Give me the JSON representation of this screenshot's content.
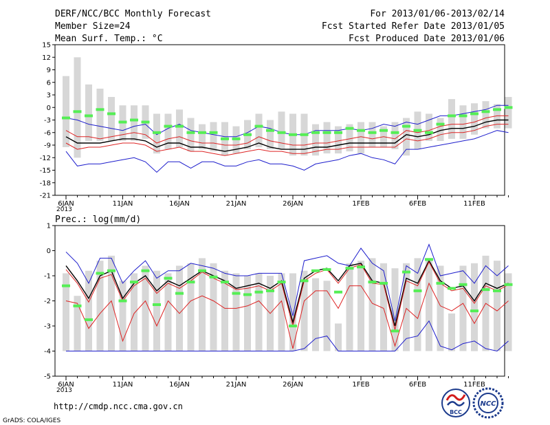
{
  "header": {
    "left": [
      "DERF/NCC/BCC Monthly Forecast",
      "Member Size=24",
      "Mean Surf. Temp.: °C"
    ],
    "right": [
      "For 2013/01/06-2013/02/14",
      "Fcst Started Refer Date 2013/01/05",
      "Fcst Produced Date 2013/01/06"
    ]
  },
  "footer": {
    "url": "http://cmdp.ncc.cma.gov.cn",
    "credit": "GrADS: COLA/IGES"
  },
  "logos": {
    "bcc_label": "BCC",
    "ncc_label": "NCC"
  },
  "colors": {
    "bar": "#d7d7d7",
    "mean": "#000000",
    "red": "#dd2222",
    "blue": "#1c1ccc",
    "green": "#55ee55"
  },
  "chart_data": [
    {
      "type": "line",
      "title": "Mean Surf. Temp.: °C",
      "ylim": [
        -21,
        15
      ],
      "yticks": [
        "15",
        "12",
        "9",
        "6",
        "3",
        "0",
        "-3",
        "-6",
        "-9",
        "-12",
        "-15",
        "-18",
        "-21"
      ],
      "xlabels": [
        "6JAN",
        "11JAN",
        "16JAN",
        "21JAN",
        "26JAN",
        "1FEB",
        "6FEB",
        "11FEB"
      ],
      "year_label": "2013",
      "days": 40,
      "bars_top": [
        7.5,
        12,
        5.5,
        4.5,
        2.5,
        0.5,
        0.5,
        0.5,
        -1.5,
        -1.5,
        -0.5,
        -2.5,
        -4.0,
        -3.5,
        -3.5,
        -4.5,
        -3.0,
        -1.5,
        -3.0,
        -1.0,
        -1.5,
        -1.5,
        -4.0,
        -3.5,
        -4.5,
        -4.0,
        -3.5,
        -3.5,
        -4.5,
        -3.5,
        -2.5,
        -1.0,
        -1.5,
        -2.5,
        2.0,
        0.5,
        1.0,
        1.5,
        0.8,
        2.5
      ],
      "bars_bottom": [
        -9.5,
        -12,
        -8,
        -8,
        -8,
        -8,
        -8,
        -7.5,
        -11,
        -10,
        -9.5,
        -10.5,
        -10,
        -10.5,
        -11.5,
        -11,
        -10,
        -9.5,
        -10,
        -10,
        -11.5,
        -11.5,
        -11.5,
        -11,
        -11,
        -10.5,
        -11,
        -9.5,
        -9.5,
        -10,
        -11.5,
        -10,
        -8,
        -8,
        -7.5,
        -7.5,
        -6.5,
        -5,
        -5,
        -5
      ],
      "green": [
        -2.5,
        -1.0,
        -2.0,
        -0.5,
        -1.5,
        -3.5,
        -3.0,
        -3.5,
        -6.0,
        -4.5,
        -4.5,
        -6.0,
        -6.0,
        -6.0,
        -7.5,
        -7.5,
        -6.5,
        -4.5,
        -5.5,
        -6.0,
        -6.5,
        -6.5,
        -6.0,
        -6.0,
        -6.0,
        -5.0,
        -5.5,
        -6.0,
        -5.5,
        -6.0,
        -4.5,
        -5.5,
        -6.0,
        -4.0,
        -2.0,
        -2.0,
        -1.5,
        -1.0,
        -0.5,
        0.0
      ],
      "series": [
        {
          "name": "blue-upper",
          "color": "#1c1ccc",
          "values": [
            -2.5,
            -3.0,
            -4.0,
            -4.5,
            -5.0,
            -5.5,
            -4.5,
            -4.0,
            -6.5,
            -5.0,
            -4.0,
            -5.5,
            -6.0,
            -6.5,
            -7.0,
            -7.0,
            -6.0,
            -4.5,
            -5.0,
            -6.0,
            -6.5,
            -6.5,
            -5.5,
            -5.5,
            -5.5,
            -5.0,
            -5.5,
            -5.0,
            -4.0,
            -4.5,
            -3.5,
            -4.0,
            -3.0,
            -2.0,
            -2.0,
            -1.5,
            -1.0,
            -0.5,
            0.5,
            0.5
          ]
        },
        {
          "name": "red-upper",
          "color": "#dd2222",
          "values": [
            -5.5,
            -7.0,
            -7.0,
            -7.5,
            -7.0,
            -6.5,
            -6.0,
            -6.5,
            -8.5,
            -7.5,
            -7.0,
            -8.0,
            -8.5,
            -8.5,
            -9.0,
            -9.0,
            -8.5,
            -7.0,
            -8.0,
            -8.5,
            -9.0,
            -9.0,
            -8.5,
            -8.5,
            -8.0,
            -7.5,
            -7.0,
            -7.5,
            -7.0,
            -7.5,
            -5.5,
            -6.0,
            -5.5,
            -4.5,
            -4.0,
            -4.0,
            -3.5,
            -2.5,
            -2.0,
            -2.0
          ]
        },
        {
          "name": "mean",
          "color": "#000000",
          "values": [
            -7.0,
            -8.5,
            -8.5,
            -8.5,
            -8.0,
            -7.5,
            -7.5,
            -8.0,
            -9.5,
            -8.5,
            -8.5,
            -9.5,
            -9.5,
            -10.0,
            -10.5,
            -10.0,
            -9.5,
            -8.5,
            -9.5,
            -10.0,
            -10.0,
            -10.0,
            -9.5,
            -9.5,
            -9.0,
            -8.5,
            -8.5,
            -8.5,
            -8.5,
            -8.5,
            -6.5,
            -7.0,
            -6.5,
            -5.5,
            -5.0,
            -5.0,
            -4.5,
            -3.5,
            -3.0,
            -3.0
          ]
        },
        {
          "name": "red-lower",
          "color": "#dd2222",
          "values": [
            -8.5,
            -10.0,
            -9.5,
            -9.5,
            -9.0,
            -8.5,
            -8.5,
            -9.0,
            -10.5,
            -10.0,
            -9.5,
            -10.5,
            -10.5,
            -11.0,
            -11.5,
            -11.0,
            -10.5,
            -10.0,
            -10.5,
            -10.5,
            -11.0,
            -11.0,
            -10.5,
            -10.0,
            -10.0,
            -9.5,
            -9.5,
            -9.5,
            -9.5,
            -9.5,
            -7.5,
            -8.0,
            -7.5,
            -6.5,
            -6.0,
            -6.0,
            -5.5,
            -4.5,
            -4.0,
            -4.0
          ]
        },
        {
          "name": "blue-lower",
          "color": "#1c1ccc",
          "values": [
            -10.5,
            -14.0,
            -13.5,
            -13.5,
            -13.0,
            -12.5,
            -12.0,
            -13.0,
            -15.5,
            -13.0,
            -13.0,
            -14.5,
            -13.0,
            -13.0,
            -14.0,
            -14.0,
            -13.0,
            -12.5,
            -13.5,
            -13.5,
            -14.0,
            -15.0,
            -13.5,
            -13.0,
            -12.5,
            -11.5,
            -11.0,
            -12.0,
            -12.5,
            -13.5,
            -10.0,
            -10.0,
            -9.5,
            -9.0,
            -8.5,
            -8.0,
            -7.5,
            -6.5,
            -5.5,
            -6.0
          ]
        }
      ]
    },
    {
      "type": "line",
      "title": "Prec.: log(mm/d)",
      "ylim": [
        -5,
        1
      ],
      "yticks": [
        "1",
        "0",
        "-1",
        "-2",
        "-3",
        "-4",
        "-5"
      ],
      "xlabels": [
        "6JAN",
        "11JAN",
        "16JAN",
        "21JAN",
        "26JAN",
        "1FEB",
        "6FEB",
        "11FEB"
      ],
      "year_label": "2013",
      "days": 40,
      "bars_top": [
        -0.9,
        -1.8,
        -0.8,
        -0.4,
        -0.2,
        -1.2,
        -0.9,
        -0.6,
        -0.8,
        -0.9,
        -0.6,
        -0.5,
        -0.3,
        -0.5,
        -0.8,
        -0.9,
        -1.0,
        -0.9,
        -1.0,
        -0.9,
        -0.9,
        -0.8,
        -1.1,
        -1.2,
        -2.9,
        -0.5,
        -0.4,
        -0.3,
        -0.5,
        -0.7,
        -0.5,
        -0.3,
        -0.3,
        -0.6,
        -2.5,
        -0.6,
        -0.5,
        -0.2,
        -0.4,
        -0.9
      ],
      "bars_bottom": -4.0,
      "green": [
        -1.4,
        -2.2,
        -2.75,
        -0.9,
        -0.8,
        -2.0,
        -1.25,
        -0.8,
        -2.15,
        -1.1,
        -1.7,
        -1.25,
        -0.8,
        -1.05,
        -1.25,
        -1.7,
        -1.75,
        -1.65,
        -1.6,
        -1.25,
        -3.0,
        -1.2,
        -0.8,
        -0.75,
        -1.65,
        -0.7,
        -0.65,
        -1.25,
        -1.3,
        -3.2,
        -0.85,
        -1.6,
        -0.35,
        -1.3,
        -1.5,
        -1.35,
        -2.4,
        -1.55,
        -1.6,
        -1.35
      ],
      "series": [
        {
          "name": "blue-upper",
          "color": "#1c1ccc",
          "values": [
            -0.05,
            -0.5,
            -1.3,
            -0.3,
            -0.3,
            -1.3,
            -0.8,
            -0.4,
            -1.1,
            -0.8,
            -0.8,
            -0.5,
            -0.6,
            -0.7,
            -0.9,
            -1.0,
            -1.0,
            -0.9,
            -0.9,
            -0.9,
            -2.6,
            -0.4,
            -0.3,
            -0.2,
            -0.5,
            -0.6,
            0.1,
            -0.5,
            -0.8,
            -2.8,
            -0.6,
            -0.9,
            0.25,
            -1.0,
            -0.9,
            -0.8,
            -1.3,
            -0.6,
            -1.0,
            -0.6
          ]
        },
        {
          "name": "mean",
          "color": "#000000",
          "values": [
            -0.6,
            -1.2,
            -1.9,
            -1.0,
            -0.8,
            -1.9,
            -1.3,
            -1.0,
            -1.6,
            -1.2,
            -1.4,
            -1.1,
            -0.8,
            -1.0,
            -1.2,
            -1.5,
            -1.4,
            -1.3,
            -1.5,
            -1.2,
            -2.85,
            -1.1,
            -0.8,
            -0.7,
            -1.2,
            -0.6,
            -0.5,
            -1.2,
            -1.3,
            -3.0,
            -1.1,
            -1.3,
            -0.4,
            -1.2,
            -1.5,
            -1.4,
            -2.0,
            -1.3,
            -1.5,
            -1.3
          ]
        },
        {
          "name": "red-upper",
          "color": "#dd2222",
          "values": [
            -0.75,
            -1.3,
            -2.05,
            -1.1,
            -0.95,
            -2.0,
            -1.4,
            -1.1,
            -1.7,
            -1.3,
            -1.5,
            -1.2,
            -0.85,
            -1.1,
            -1.3,
            -1.55,
            -1.5,
            -1.4,
            -1.6,
            -1.3,
            -3.0,
            -1.2,
            -0.9,
            -0.75,
            -1.3,
            -0.7,
            -0.55,
            -1.3,
            -1.35,
            -3.15,
            -1.2,
            -1.4,
            -0.45,
            -1.3,
            -1.6,
            -1.5,
            -2.1,
            -1.4,
            -1.6,
            -1.35
          ]
        },
        {
          "name": "red-lower",
          "color": "#dd2222",
          "values": [
            -2.0,
            -2.1,
            -3.1,
            -2.5,
            -2.0,
            -3.6,
            -2.5,
            -2.0,
            -3.0,
            -2.0,
            -2.5,
            -2.0,
            -1.8,
            -2.0,
            -2.3,
            -2.3,
            -2.2,
            -2.0,
            -2.5,
            -2.0,
            -3.9,
            -2.0,
            -1.6,
            -1.6,
            -2.3,
            -1.4,
            -1.4,
            -2.1,
            -2.3,
            -3.8,
            -2.3,
            -2.7,
            -1.3,
            -2.2,
            -2.4,
            -2.1,
            -2.9,
            -2.1,
            -2.4,
            -2.0
          ]
        },
        {
          "name": "blue-lower",
          "color": "#1c1ccc",
          "values": [
            -4.0,
            -4.0,
            -4.0,
            -4.0,
            -4.0,
            -4.0,
            -4.0,
            -4.0,
            -4.0,
            -4.0,
            -4.0,
            -4.0,
            -4.0,
            -4.0,
            -4.0,
            -4.0,
            -4.0,
            -4.0,
            -4.0,
            -4.0,
            -4.0,
            -3.9,
            -3.5,
            -3.4,
            -4.0,
            -4.0,
            -4.0,
            -4.0,
            -4.0,
            -4.0,
            -3.5,
            -3.4,
            -2.8,
            -3.8,
            -3.95,
            -3.7,
            -3.6,
            -3.9,
            -4.0,
            -3.6
          ]
        }
      ]
    }
  ]
}
